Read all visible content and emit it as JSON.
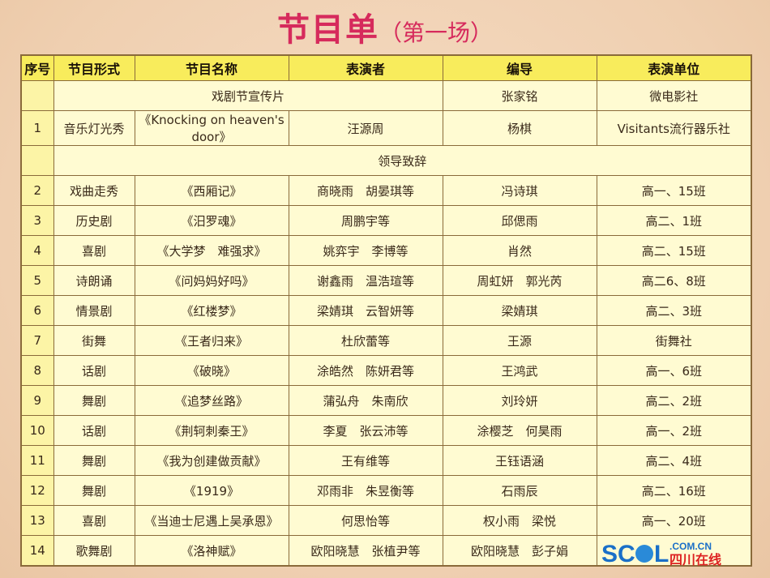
{
  "title": {
    "main": "节目单",
    "sub": "（第一场）"
  },
  "headers": [
    "序号",
    "节目形式",
    "节目名称",
    "表演者",
    "编导",
    "表演单位"
  ],
  "special_rows": [
    {
      "title": "戏剧节宣传片",
      "director": "张家铭",
      "unit": "微电影社"
    },
    {
      "title": "领导致辞"
    }
  ],
  "rows": [
    {
      "no": "1",
      "form": "音乐灯光秀",
      "name": "《Knocking on heaven's door》",
      "performer": "汪源周",
      "director": "杨棋",
      "unit": "Visitants流行器乐社"
    },
    {
      "no": "2",
      "form": "戏曲走秀",
      "name": "《西厢记》",
      "performer": "商晓雨　胡晏琪等",
      "director": "冯诗琪",
      "unit": "高一、15班"
    },
    {
      "no": "3",
      "form": "历史剧",
      "name": "《汨罗魂》",
      "performer": "周鹏宇等",
      "director": "邱偲雨",
      "unit": "高二、1班"
    },
    {
      "no": "4",
      "form": "喜剧",
      "name": "《大学梦　难强求》",
      "performer": "姚弈宇　李博等",
      "director": "肖然",
      "unit": "高二、15班"
    },
    {
      "no": "5",
      "form": "诗朗诵",
      "name": "《问妈妈好吗》",
      "performer": "谢鑫雨　温浩瑄等",
      "director": "周虹妍　郭光芮",
      "unit": "高二6、8班"
    },
    {
      "no": "6",
      "form": "情景剧",
      "name": "《红楼梦》",
      "performer": "梁婧琪　云智妍等",
      "director": "梁婧琪",
      "unit": "高二、3班"
    },
    {
      "no": "7",
      "form": "街舞",
      "name": "《王者归来》",
      "performer": "杜欣蕾等",
      "director": "王源",
      "unit": "街舞社"
    },
    {
      "no": "8",
      "form": "话剧",
      "name": "《破晓》",
      "performer": "涂皓然　陈妍君等",
      "director": "王鸿武",
      "unit": "高一、6班"
    },
    {
      "no": "9",
      "form": "舞剧",
      "name": "《追梦丝路》",
      "performer": "蒲弘舟　朱南欣",
      "director": "刘玲妍",
      "unit": "高二、2班"
    },
    {
      "no": "10",
      "form": "话剧",
      "name": "《荆轲刺秦王》",
      "performer": "李夏　张云沛等",
      "director": "涂樱芝　何昊雨",
      "unit": "高一、2班"
    },
    {
      "no": "11",
      "form": "舞剧",
      "name": "《我为创建做贡献》",
      "performer": "王有维等",
      "director": "王钰语涵",
      "unit": "高二、4班"
    },
    {
      "no": "12",
      "form": "舞剧",
      "name": "《1919》",
      "performer": "邓雨非　朱昱衡等",
      "director": "石雨辰",
      "unit": "高二、16班"
    },
    {
      "no": "13",
      "form": "喜剧",
      "name": "《当迪士尼遇上吴承恩》",
      "performer": "何思怡等",
      "director": "权小雨　梁悦",
      "unit": "高一、20班"
    },
    {
      "no": "14",
      "form": "歌舞剧",
      "name": "《洛神赋》",
      "performer": "欧阳晓慧　张植尹等",
      "director": "欧阳晓慧　彭子娟",
      "unit": ""
    }
  ],
  "watermark": {
    "text1": "SCOL",
    "text2": ".COM.CN",
    "text3": "四川在线"
  }
}
